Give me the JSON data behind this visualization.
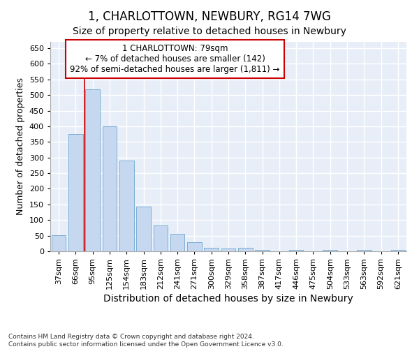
{
  "title": "1, CHARLOTTOWN, NEWBURY, RG14 7WG",
  "subtitle": "Size of property relative to detached houses in Newbury",
  "xlabel": "Distribution of detached houses by size in Newbury",
  "ylabel": "Number of detached properties",
  "categories": [
    "37sqm",
    "66sqm",
    "95sqm",
    "125sqm",
    "154sqm",
    "183sqm",
    "212sqm",
    "241sqm",
    "271sqm",
    "300sqm",
    "329sqm",
    "358sqm",
    "387sqm",
    "417sqm",
    "446sqm",
    "475sqm",
    "504sqm",
    "533sqm",
    "563sqm",
    "592sqm",
    "621sqm"
  ],
  "values": [
    51,
    375,
    519,
    400,
    291,
    142,
    82,
    55,
    29,
    11,
    9,
    11,
    5,
    0,
    5,
    0,
    5,
    0,
    5,
    0,
    5
  ],
  "bar_color": "#c5d8f0",
  "bar_edge_color": "#7aaed4",
  "annotation_box_text": "1 CHARLOTTOWN: 79sqm\n← 7% of detached houses are smaller (142)\n92% of semi-detached houses are larger (1,811) →",
  "annotation_box_color": "#ffffff",
  "annotation_box_edge_color": "#cc0000",
  "vline_color": "#cc0000",
  "vline_x_index": 1.5,
  "ylim": [
    0,
    670
  ],
  "yticks": [
    0,
    50,
    100,
    150,
    200,
    250,
    300,
    350,
    400,
    450,
    500,
    550,
    600,
    650
  ],
  "plot_bg_color": "#e8eef8",
  "fig_bg_color": "#ffffff",
  "grid_color": "#ffffff",
  "footer_line1": "Contains HM Land Registry data © Crown copyright and database right 2024.",
  "footer_line2": "Contains public sector information licensed under the Open Government Licence v3.0.",
  "title_fontsize": 12,
  "subtitle_fontsize": 10,
  "xlabel_fontsize": 10,
  "ylabel_fontsize": 9,
  "tick_fontsize": 8,
  "annotation_fontsize": 8.5
}
